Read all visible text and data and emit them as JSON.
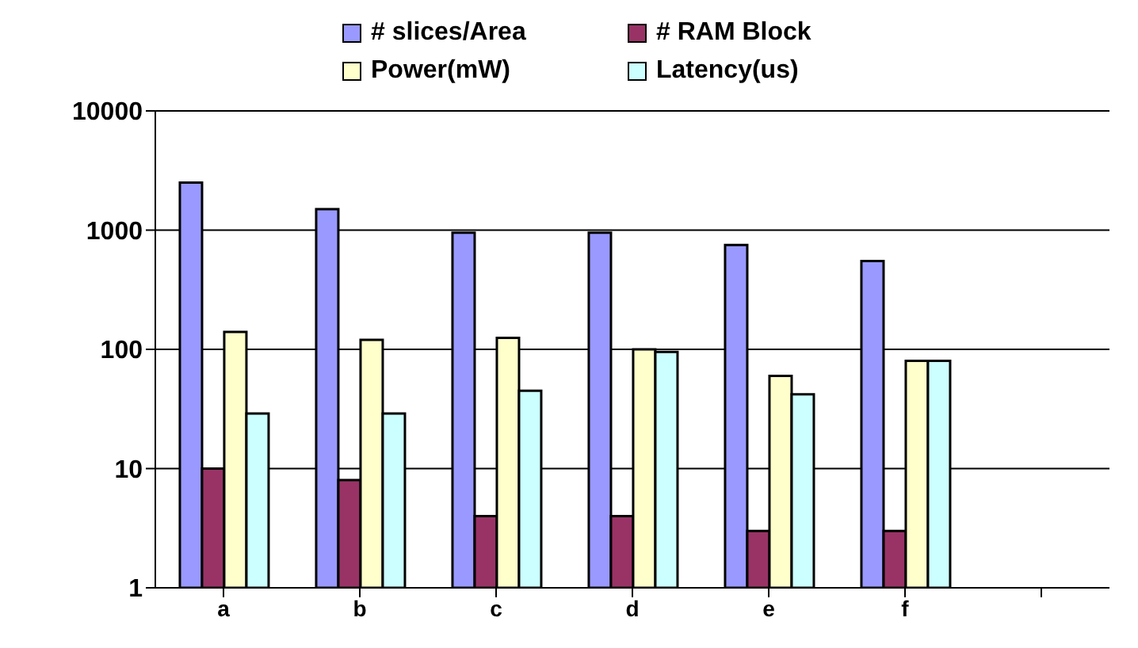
{
  "chart_data": {
    "type": "bar",
    "categories": [
      "a",
      "b",
      "c",
      "d",
      "e",
      "f",
      null
    ],
    "series": [
      {
        "name": "# slices/Area",
        "color": "#9999ff",
        "values": [
          2500,
          1500,
          950,
          950,
          750,
          550,
          null
        ]
      },
      {
        "name": "# RAM Block",
        "color": "#993366",
        "values": [
          10,
          8,
          4,
          4,
          3,
          3,
          null
        ]
      },
      {
        "name": "Power(mW)",
        "color": "#ffffcc",
        "values": [
          140,
          120,
          125,
          100,
          60,
          80,
          null
        ]
      },
      {
        "name": "Latency(us)",
        "color": "#ccffff",
        "values": [
          29,
          29,
          45,
          95,
          42,
          80,
          null
        ]
      }
    ],
    "log": true,
    "ylim": [
      1,
      10000
    ],
    "yticks": [
      1,
      10,
      100,
      1000,
      10000
    ],
    "grid": "y",
    "legend": "top"
  }
}
